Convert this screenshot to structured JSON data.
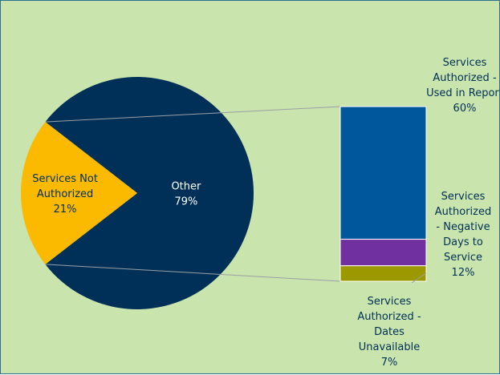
{
  "chart_data": {
    "type": "pie",
    "subtype": "bar-of-pie",
    "title": "",
    "pie": {
      "slices": [
        {
          "label": "Other",
          "value": 79,
          "value_label": "79%",
          "color": "#003057",
          "label_color": "#ffffff"
        },
        {
          "label": "Services Not Authorized",
          "value": 21,
          "value_label": "21%",
          "color": "#fbb900",
          "label_color": "#003057"
        }
      ]
    },
    "bar": {
      "stack": [
        {
          "label": "Services Authorized - Used in Report",
          "value": 60,
          "value_label": "60%",
          "color": "#00579b"
        },
        {
          "label": "Services Authorized - Negative Days to Service",
          "value": 12,
          "value_label": "12%",
          "color": "#7030a0"
        },
        {
          "label": "Services Authorized - Dates Unavailable",
          "value": 7,
          "value_label": "7%",
          "color": "#9c9800"
        }
      ]
    },
    "background": "#c9e4ad",
    "label_color": "#003057",
    "connector_color": "#9aa0a6"
  }
}
